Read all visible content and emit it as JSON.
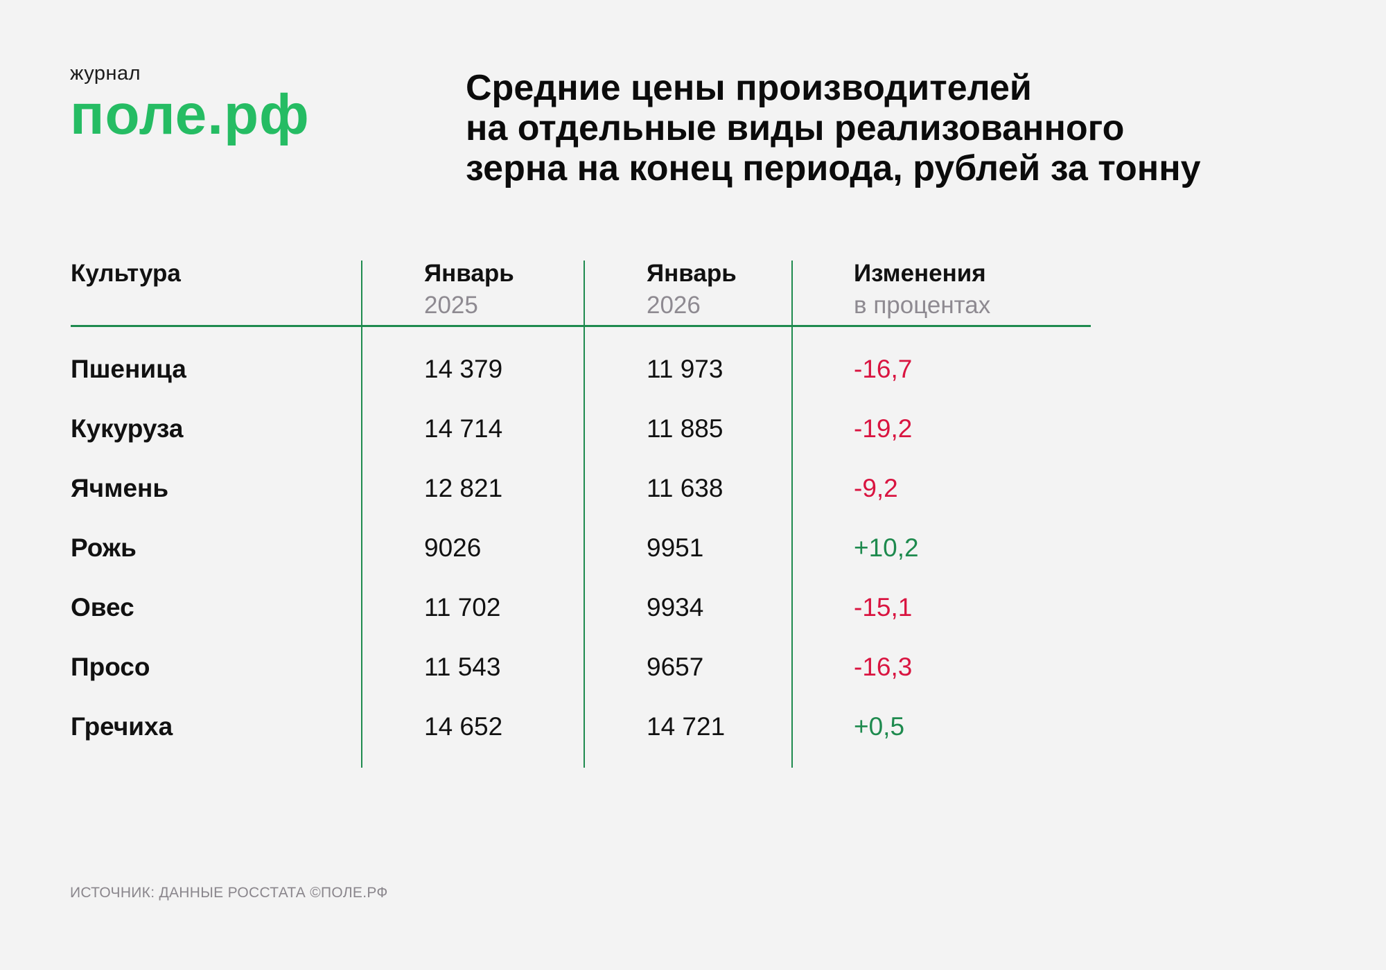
{
  "logo": {
    "small": "журнал",
    "big": "поле.рф",
    "color": "#25BC63"
  },
  "title": {
    "lines": [
      "Средние цены производителей",
      "на отдельные виды реализованного",
      "зерна на конец периода, рублей за тонну"
    ]
  },
  "table": {
    "headers": [
      {
        "line1": "Культура",
        "line2": ""
      },
      {
        "line1": "Январь",
        "line2": "2025"
      },
      {
        "line1": "Январь",
        "line2": "2026"
      },
      {
        "line1": "Изменения",
        "line2": "в процентах"
      }
    ],
    "rows": [
      {
        "crop": "Пшеница",
        "jan2025": "14 379",
        "jan2026": "11 973",
        "change": "-16,7",
        "sign": "neg"
      },
      {
        "crop": "Кукуруза",
        "jan2025": "14 714",
        "jan2026": "11 885",
        "change": "-19,2",
        "sign": "neg"
      },
      {
        "crop": "Ячмень",
        "jan2025": "12 821",
        "jan2026": "11 638",
        "change": "-9,2",
        "sign": "neg"
      },
      {
        "crop": "Рожь",
        "jan2025": "9026",
        "jan2026": "9951",
        "change": "+10,2",
        "sign": "pos"
      },
      {
        "crop": "Овес",
        "jan2025": "11 702",
        "jan2026": "9934",
        "change": "-15,1",
        "sign": "neg"
      },
      {
        "crop": "Просо",
        "jan2025": "11 543",
        "jan2026": "9657",
        "change": "-16,3",
        "sign": "neg"
      },
      {
        "crop": "Гречиха",
        "jan2025": "14 652",
        "jan2026": "14 721",
        "change": "+0,5",
        "sign": "pos"
      }
    ]
  },
  "colors": {
    "negative": "#D91440",
    "positive": "#1E8A4E",
    "rule": "#1E8A4E",
    "muted": "#8E8A91",
    "background": "#F3F3F3"
  },
  "footer": {
    "source": "ИСТОЧНИК: ДАННЫЕ РОССТАТА ©ПОЛЕ.РФ"
  }
}
